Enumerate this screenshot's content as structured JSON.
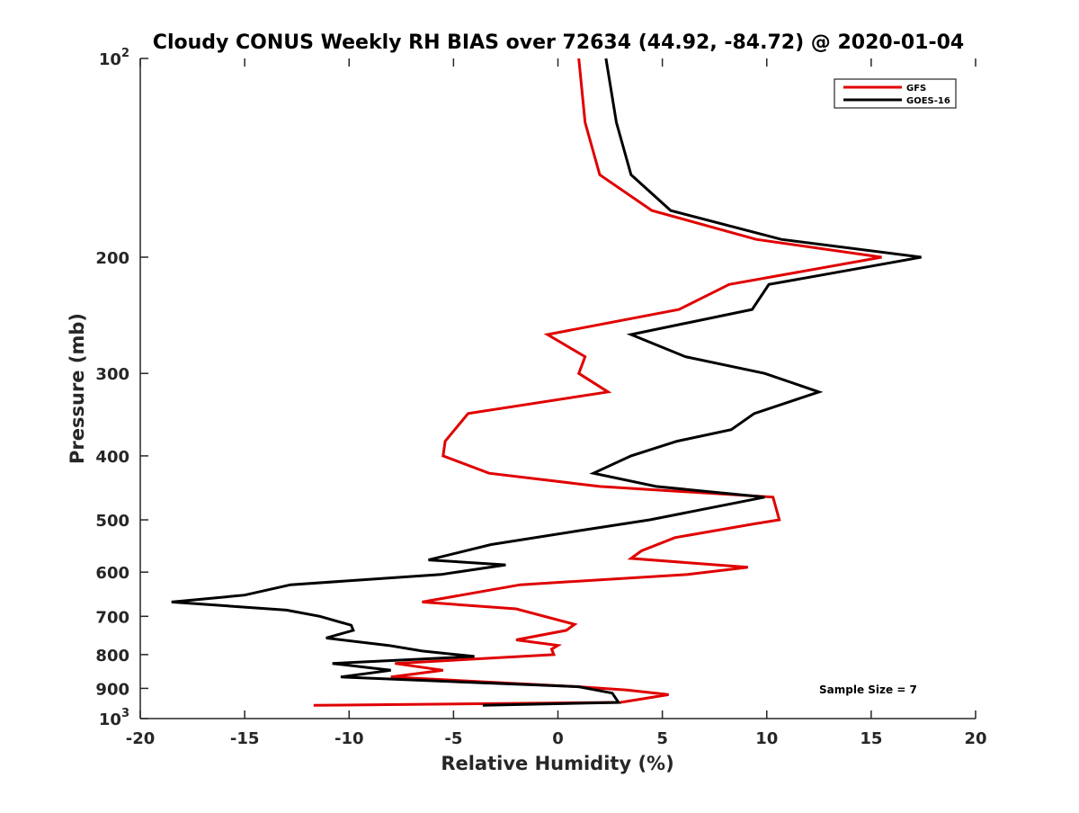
{
  "chart_data": {
    "type": "line",
    "title": "Cloudy CONUS Weekly RH BIAS over 72634 (44.92, -84.72) @ 2020-01-04",
    "xlabel": "Relative Humidity (%)",
    "ylabel": "Pressure (mb)",
    "xlim": [
      -20,
      20
    ],
    "ylim": [
      100,
      1000
    ],
    "y_scale": "log",
    "y_reversed": true,
    "x_ticks": [
      "-20",
      "-15",
      "-10",
      "-5",
      "0",
      "5",
      "10",
      "15",
      "20"
    ],
    "y_ticks": [
      {
        "value": 100,
        "label": "10",
        "exp": "2"
      },
      {
        "value": 200,
        "label": "200",
        "exp": ""
      },
      {
        "value": 300,
        "label": "300",
        "exp": ""
      },
      {
        "value": 400,
        "label": "400",
        "exp": ""
      },
      {
        "value": 500,
        "label": "500",
        "exp": ""
      },
      {
        "value": 600,
        "label": "600",
        "exp": ""
      },
      {
        "value": 700,
        "label": "700",
        "exp": ""
      },
      {
        "value": 800,
        "label": "800",
        "exp": ""
      },
      {
        "value": 900,
        "label": "900",
        "exp": ""
      },
      {
        "value": 1000,
        "label": "10",
        "exp": "3"
      }
    ],
    "grid": false,
    "legend_position": "top-right",
    "annotation": "Sample Size = 7",
    "series": [
      {
        "name": "GFS",
        "color": "#e00000",
        "points": [
          [
            1.0,
            100
          ],
          [
            1.3,
            125
          ],
          [
            2.0,
            150
          ],
          [
            4.5,
            170
          ],
          [
            9.5,
            188
          ],
          [
            15.5,
            200
          ],
          [
            8.2,
            220
          ],
          [
            5.8,
            240
          ],
          [
            -0.5,
            262
          ],
          [
            1.3,
            283
          ],
          [
            1.0,
            300
          ],
          [
            2.4,
            320
          ],
          [
            -4.3,
            345
          ],
          [
            -5.4,
            380
          ],
          [
            -5.5,
            400
          ],
          [
            -3.3,
            425
          ],
          [
            2.0,
            445
          ],
          [
            10.3,
            462
          ],
          [
            10.6,
            500
          ],
          [
            9.4,
            507
          ],
          [
            5.6,
            532
          ],
          [
            4.0,
            557
          ],
          [
            3.5,
            572
          ],
          [
            9.1,
            590
          ],
          [
            6.2,
            605
          ],
          [
            -1.8,
            627
          ],
          [
            -6.5,
            666
          ],
          [
            -2.0,
            682
          ],
          [
            0.8,
            720
          ],
          [
            0.4,
            735
          ],
          [
            -2.0,
            760
          ],
          [
            0.0,
            775
          ],
          [
            -0.3,
            785
          ],
          [
            -0.2,
            800
          ],
          [
            -7.8,
            825
          ],
          [
            -5.5,
            845
          ],
          [
            -8.0,
            865
          ],
          [
            1.0,
            895
          ],
          [
            3.3,
            905
          ],
          [
            5.3,
            920
          ],
          [
            3.0,
            945
          ],
          [
            -11.7,
            955
          ]
        ]
      },
      {
        "name": "GOES-16",
        "color": "#000000",
        "points": [
          [
            2.3,
            100
          ],
          [
            2.8,
            125
          ],
          [
            3.5,
            150
          ],
          [
            5.4,
            170
          ],
          [
            10.7,
            188
          ],
          [
            17.4,
            200
          ],
          [
            10.1,
            220
          ],
          [
            9.3,
            240
          ],
          [
            3.5,
            262
          ],
          [
            6.1,
            283
          ],
          [
            9.9,
            300
          ],
          [
            12.5,
            320
          ],
          [
            9.4,
            345
          ],
          [
            8.3,
            365
          ],
          [
            5.7,
            380
          ],
          [
            3.5,
            400
          ],
          [
            1.7,
            425
          ],
          [
            4.7,
            445
          ],
          [
            9.9,
            462
          ],
          [
            4.4,
            500
          ],
          [
            0.9,
            520
          ],
          [
            -3.2,
            545
          ],
          [
            -6.2,
            575
          ],
          [
            -2.5,
            585
          ],
          [
            -5.6,
            605
          ],
          [
            -12.8,
            627
          ],
          [
            -15.0,
            650
          ],
          [
            -18.5,
            666
          ],
          [
            -13.0,
            685
          ],
          [
            -11.4,
            700
          ],
          [
            -9.9,
            722
          ],
          [
            -9.8,
            735
          ],
          [
            -11.1,
            755
          ],
          [
            -8.1,
            775
          ],
          [
            -6.5,
            790
          ],
          [
            -4.0,
            805
          ],
          [
            -10.8,
            825
          ],
          [
            -8.0,
            845
          ],
          [
            -10.4,
            865
          ],
          [
            1.0,
            895
          ],
          [
            2.6,
            915
          ],
          [
            2.9,
            945
          ],
          [
            -3.6,
            955
          ]
        ]
      }
    ]
  }
}
